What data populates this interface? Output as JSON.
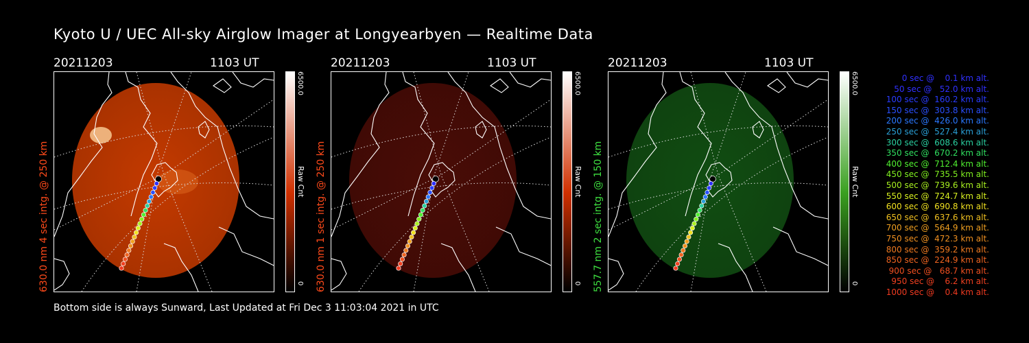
{
  "title": "Kyoto U / UEC All-sky Airglow Imager at Longyearbyen — Realtime Data",
  "footer": "Bottom side is always Sunward, Last Updated at Fri Dec  3 11:03:04 2021 in UTC",
  "panels": [
    {
      "date": "20211203",
      "time": "1103 UT",
      "ylabel": "630.0 nm 4 sec intg. @ 250 km",
      "ylabel_color": "#ff4a1a",
      "cb_max": "6500.0",
      "cb_min": "0",
      "cb_unit": "Raw Cnt",
      "cb_color": "#d03000",
      "disk_color": "#c43a00"
    },
    {
      "date": "20211203",
      "time": "1103 UT",
      "ylabel": "630.0 nm 1 sec intg. @ 250 km",
      "ylabel_color": "#ff4a1a",
      "cb_max": "6500.0",
      "cb_min": "0",
      "cb_unit": "Raw Cnt",
      "cb_color": "#d03000",
      "disk_color": "#4a0c06"
    },
    {
      "date": "20211203",
      "time": "1103 UT",
      "ylabel": "557.7 nm 2 sec intg. @ 150 km",
      "ylabel_color": "#3ee040",
      "cb_max": "6500.0",
      "cb_min": "0",
      "cb_unit": "Raw Cnt",
      "cb_color": "#3aa020",
      "disk_color": "#114d12"
    }
  ],
  "legend": [
    {
      "text": "0 sec @    0.1 km alt.",
      "color": "#3030ff"
    },
    {
      "text": "50 sec @   52.0 km alt.",
      "color": "#3030ff"
    },
    {
      "text": "100 sec @  160.2 km alt.",
      "color": "#2a3cff"
    },
    {
      "text": "150 sec @  303.8 km alt.",
      "color": "#2a50ff"
    },
    {
      "text": "200 sec @  426.0 km alt.",
      "color": "#2a78ff"
    },
    {
      "text": "250 sec @  527.4 km alt.",
      "color": "#2aa0d8"
    },
    {
      "text": "300 sec @  608.6 km alt.",
      "color": "#2ad0a0"
    },
    {
      "text": "350 sec @  670.2 km alt.",
      "color": "#30e060"
    },
    {
      "text": "400 sec @  712.4 km alt.",
      "color": "#50f030"
    },
    {
      "text": "450 sec @  735.5 km alt.",
      "color": "#80f020"
    },
    {
      "text": "500 sec @  739.6 km alt.",
      "color": "#a8f020"
    },
    {
      "text": "550 sec @  724.7 km alt.",
      "color": "#d8f020"
    },
    {
      "text": "600 sec @  690.8 km alt.",
      "color": "#f0e020"
    },
    {
      "text": "650 sec @  637.6 km alt.",
      "color": "#f0c020"
    },
    {
      "text": "700 sec @  564.9 km alt.",
      "color": "#f0a020"
    },
    {
      "text": "750 sec @  472.3 km alt.",
      "color": "#f09020"
    },
    {
      "text": "800 sec @  359.2 km alt.",
      "color": "#f07a20"
    },
    {
      "text": "850 sec @  224.9 km alt.",
      "color": "#f06420"
    },
    {
      "text": "900 sec @   68.7 km alt.",
      "color": "#f05020"
    },
    {
      "text": "950 sec @    6.2 km alt.",
      "color": "#f04020"
    },
    {
      "text": "1000 sec @    0.4 km alt.",
      "color": "#f03a20"
    }
  ]
}
